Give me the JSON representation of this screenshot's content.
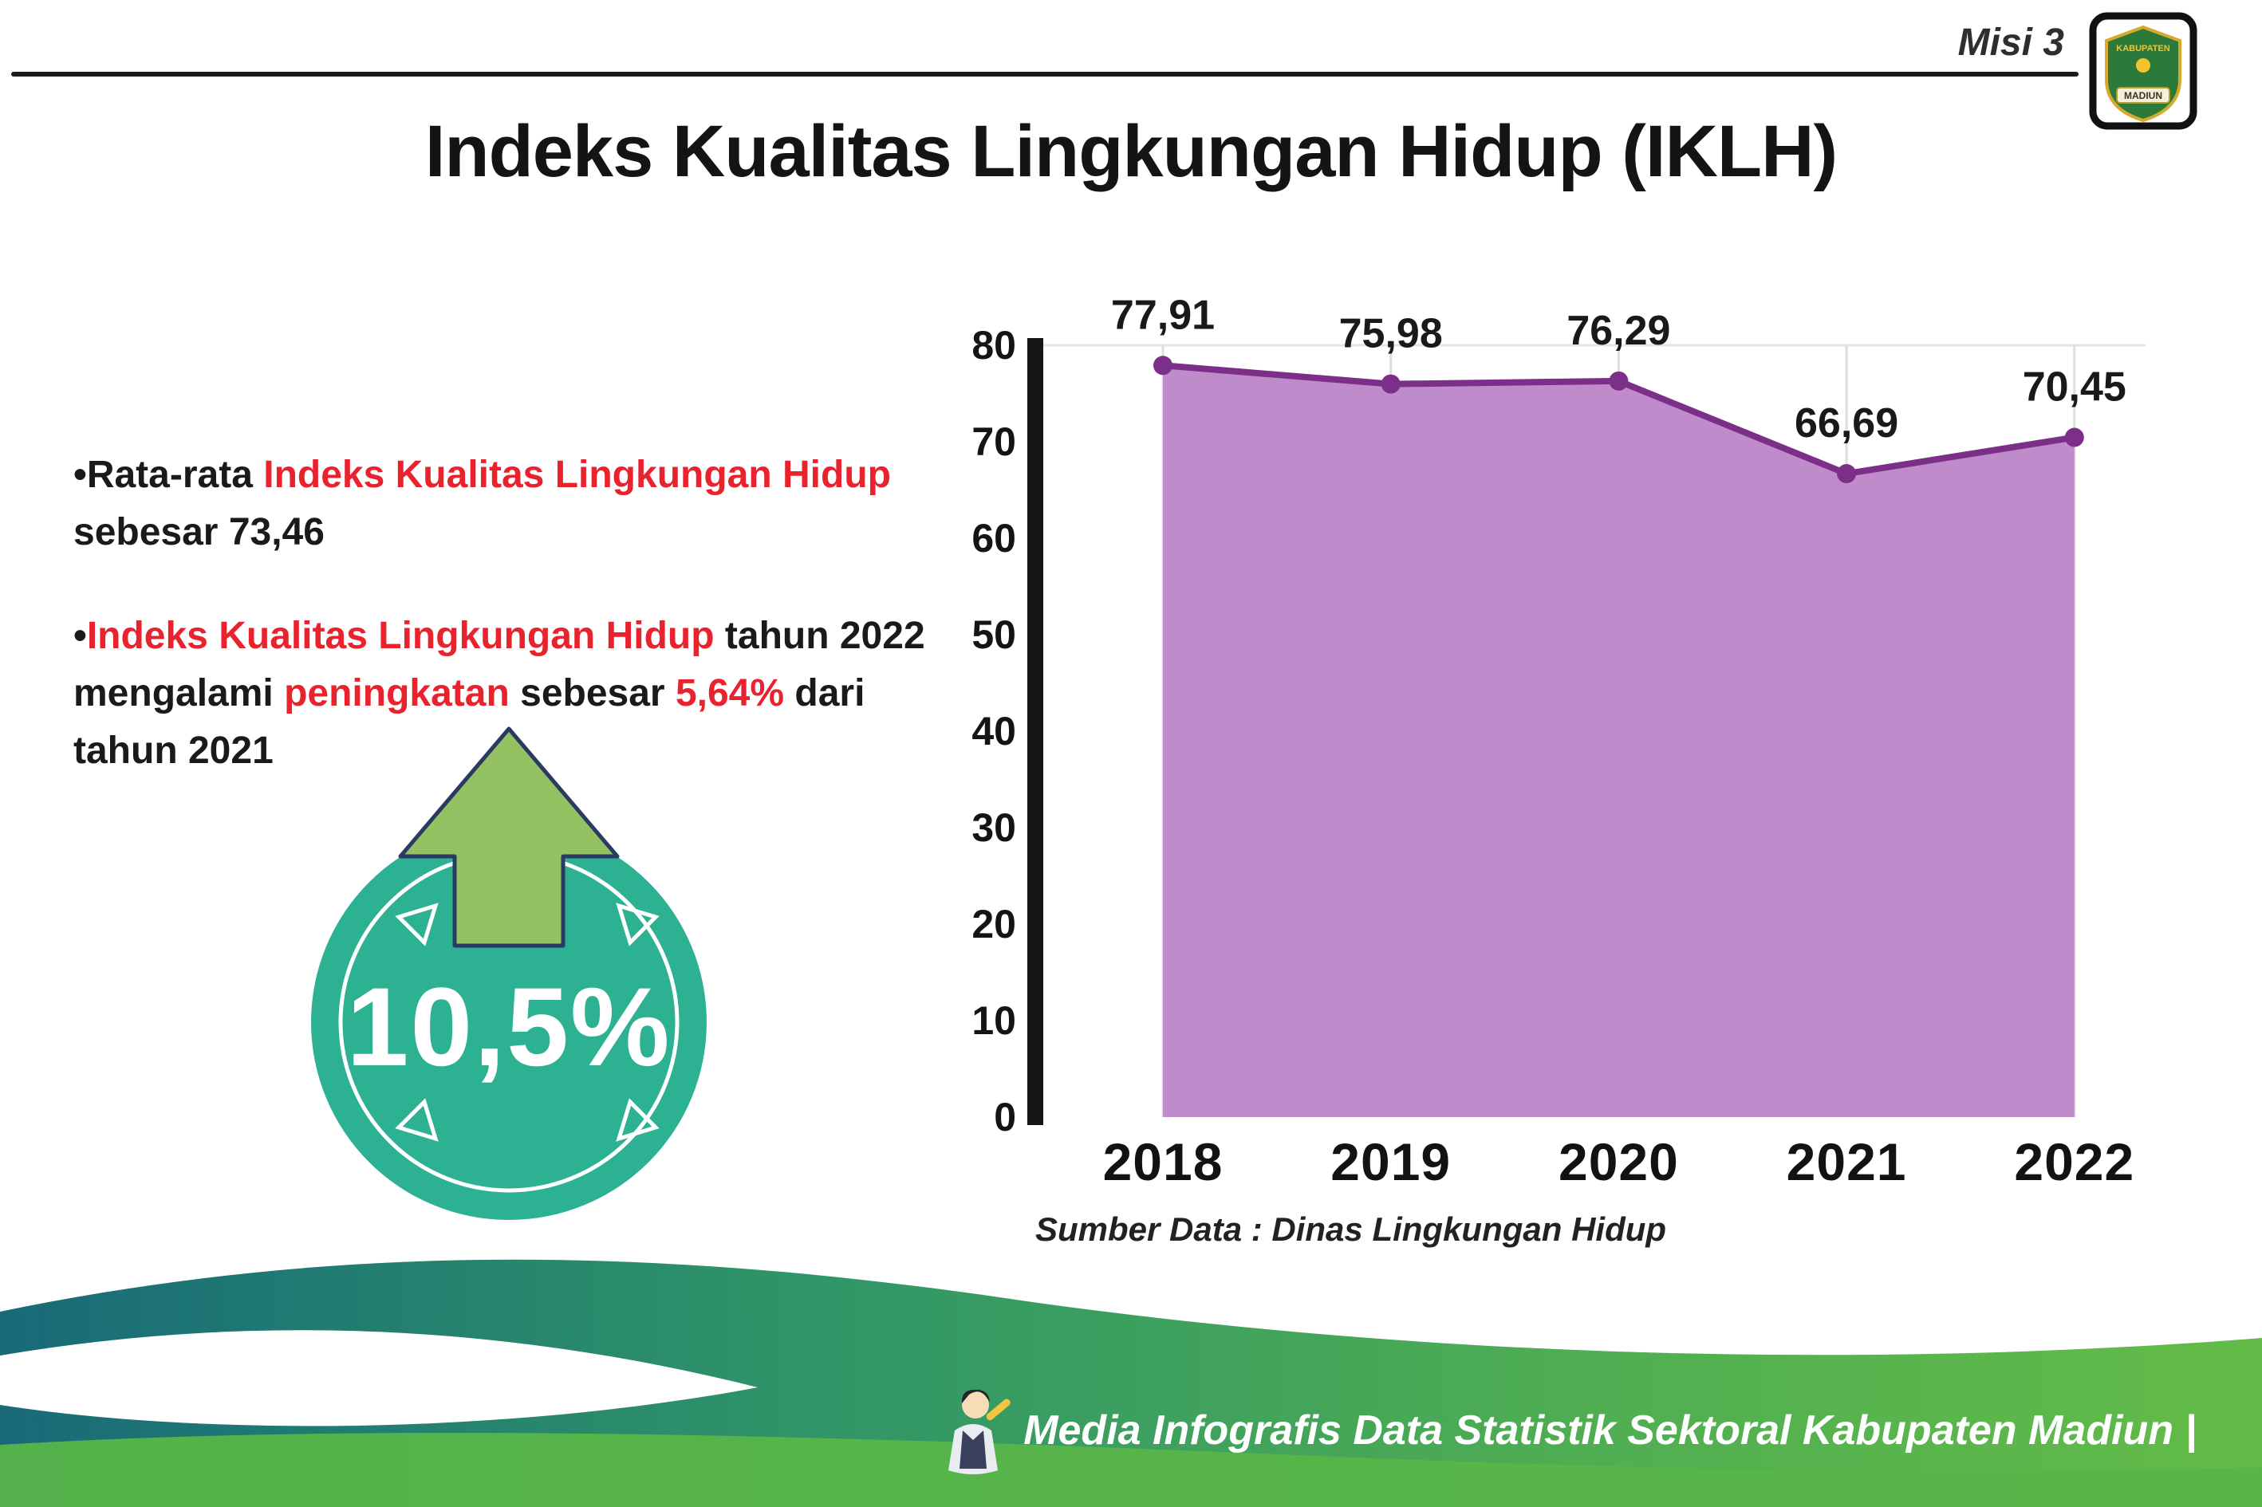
{
  "header": {
    "misi_label": "Misi 3",
    "title": "Indeks Kualitas Lingkungan Hidup (IKLH)",
    "logo": {
      "line1": "KABUPATEN",
      "line2": "MADIUN"
    }
  },
  "bullets": {
    "marker": "•",
    "b1": [
      {
        "t": "Rata-rata ",
        "c": "dark"
      },
      {
        "t": "Indeks Kualitas Lingkungan Hidup",
        "c": "red"
      },
      {
        "t": " sebesar 73,46",
        "c": "dark"
      }
    ],
    "b2": [
      {
        "t": "Indeks Kualitas Lingkungan Hidup",
        "c": "red"
      },
      {
        "t": " tahun 2022 mengalami ",
        "c": "dark"
      },
      {
        "t": "peningkatan",
        "c": "red"
      },
      {
        "t": " sebesar ",
        "c": "dark"
      },
      {
        "t": "5,64%",
        "c": "red"
      },
      {
        "t": " dari tahun 2021",
        "c": "dark"
      }
    ]
  },
  "badge": {
    "value": "10,5%"
  },
  "chart_data": {
    "type": "area",
    "categories": [
      "2018",
      "2019",
      "2020",
      "2021",
      "2022"
    ],
    "values": [
      77.91,
      75.98,
      76.29,
      66.69,
      70.45
    ],
    "value_labels": [
      "77,91",
      "75,98",
      "76,29",
      "66,69",
      "70,45"
    ],
    "ylim": [
      0,
      80
    ],
    "yticks": [
      0,
      10,
      20,
      30,
      40,
      50,
      60,
      70,
      80
    ],
    "legend": "none",
    "grid": "faint vertical lines per year",
    "area_color": "#c08bca",
    "line_color": "#7b2f88",
    "axis_color": "#161616",
    "source": "Sumber Data : Dinas Lingkungan Hidup"
  },
  "footer": {
    "caption": "Media Infografis Data Statistik Sektoral Kabupaten Madiun |"
  },
  "colors": {
    "accent_red": "#e8232e",
    "badge_teal": "#2cb192",
    "arrow_green": "#94c263",
    "wave_teal": "#186a78",
    "wave_green": "#63bb47"
  }
}
